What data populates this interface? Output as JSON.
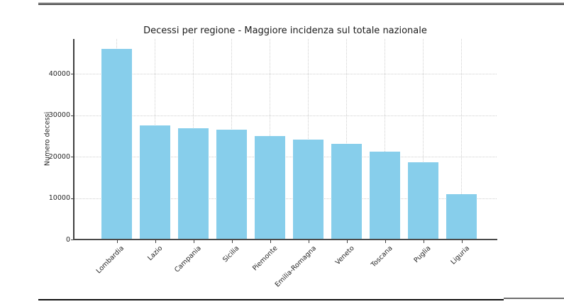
{
  "page": {
    "background": "#ffffff",
    "rules": {
      "top_rule_color": "#000000",
      "bottom_rule_color": "#111111",
      "bottom_fragment_color": "#6e6e6e"
    }
  },
  "chart_data": {
    "type": "bar",
    "title": "Decessi per regione - Maggiore incidenza sul totale nazionale",
    "xlabel": "",
    "ylabel": "Numero decessi",
    "categories": [
      "Lombardia",
      "Lazio",
      "Campania",
      "Sicilia",
      "Piemonte",
      "Emilia-Romagna",
      "Veneto",
      "Toscana",
      "Puglia",
      "Liguria"
    ],
    "values": [
      46100,
      27500,
      26900,
      26600,
      25000,
      24200,
      23100,
      21200,
      18600,
      10900
    ],
    "yticks": [
      0,
      10000,
      20000,
      30000,
      40000
    ],
    "ylim": [
      0,
      48450
    ],
    "bar_color": "#87CEEB",
    "grid": true,
    "grid_linestyle": "dotted",
    "grid_color": "#cfcfcf",
    "spine_color": "#404040",
    "text_color": "#262626",
    "xtick_rotation_deg": 45,
    "legend": "none"
  }
}
